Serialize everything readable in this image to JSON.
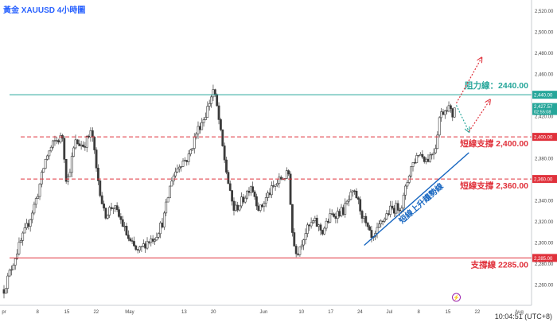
{
  "header": {
    "title": "黃金 XAUUSD 4小時圖"
  },
  "footer": {
    "time": "10:04:51 (UTC+8)"
  },
  "colors": {
    "up": "#26a69a",
    "down": "#ef5350",
    "candle": "#3a3a3a",
    "resistance": "#26a69a",
    "support": "#e0313b",
    "trend": "#1565c0",
    "badge_text": "#ffffff"
  },
  "chart_data": {
    "type": "candlestick",
    "symbol": "XAUUSD",
    "timeframe": "4H",
    "ylim": [
      2240,
      2530
    ],
    "y_ticks": [
      2260,
      2280,
      2300,
      2320,
      2340,
      2360,
      2380,
      2400,
      2420,
      2440,
      2460,
      2480,
      2500,
      2520
    ],
    "y_tick_labels": [
      "2,260.00",
      "2,280.00",
      "2,300.00",
      "2,320.00",
      "2,340.00",
      "2,360.00",
      "2,380.00",
      "2,400.00",
      "2,420.00",
      "2,440.00",
      "2,460.00",
      "2,480.00",
      "2,500.00",
      "2,520.00"
    ],
    "x_ticks": [
      {
        "label": "pr",
        "day": 0
      },
      {
        "label": "8",
        "day": 8
      },
      {
        "label": "15",
        "day": 15
      },
      {
        "label": "22",
        "day": 22
      },
      {
        "label": "May",
        "day": 30
      },
      {
        "label": "13",
        "day": 43
      },
      {
        "label": "20",
        "day": 50
      },
      {
        "label": "Jun",
        "day": 62
      },
      {
        "label": "10",
        "day": 71
      },
      {
        "label": "17",
        "day": 78
      },
      {
        "label": "24",
        "day": 85
      },
      {
        "label": "Jul",
        "day": 92
      },
      {
        "label": "8",
        "day": 99
      },
      {
        "label": "15",
        "day": 106
      },
      {
        "label": "22",
        "day": 113
      },
      {
        "label": "Aug",
        "day": 123
      }
    ],
    "x_range_days": [
      0,
      125
    ],
    "price_path": [
      [
        0,
        2255
      ],
      [
        3,
        2290
      ],
      [
        6,
        2320
      ],
      [
        8,
        2345
      ],
      [
        10,
        2380
      ],
      [
        12,
        2395
      ],
      [
        14,
        2400
      ],
      [
        15,
        2355
      ],
      [
        17,
        2395
      ],
      [
        19,
        2392
      ],
      [
        21,
        2405
      ],
      [
        22,
        2370
      ],
      [
        24,
        2325
      ],
      [
        26,
        2335
      ],
      [
        28,
        2320
      ],
      [
        30,
        2300
      ],
      [
        32,
        2290
      ],
      [
        34,
        2300
      ],
      [
        36,
        2305
      ],
      [
        38,
        2320
      ],
      [
        40,
        2360
      ],
      [
        42,
        2375
      ],
      [
        44,
        2380
      ],
      [
        46,
        2405
      ],
      [
        48,
        2420
      ],
      [
        50,
        2445
      ],
      [
        51,
        2425
      ],
      [
        52,
        2395
      ],
      [
        54,
        2345
      ],
      [
        55,
        2330
      ],
      [
        57,
        2340
      ],
      [
        59,
        2355
      ],
      [
        61,
        2330
      ],
      [
        63,
        2345
      ],
      [
        66,
        2360
      ],
      [
        68,
        2365
      ],
      [
        69,
        2300
      ],
      [
        70,
        2290
      ],
      [
        72,
        2310
      ],
      [
        74,
        2320
      ],
      [
        76,
        2310
      ],
      [
        78,
        2325
      ],
      [
        81,
        2330
      ],
      [
        83,
        2345
      ],
      [
        84,
        2345
      ],
      [
        86,
        2320
      ],
      [
        88,
        2300
      ],
      [
        90,
        2318
      ],
      [
        92,
        2330
      ],
      [
        95,
        2335
      ],
      [
        97,
        2370
      ],
      [
        99,
        2385
      ],
      [
        101,
        2378
      ],
      [
        103,
        2390
      ],
      [
        104,
        2420
      ],
      [
        106,
        2430
      ],
      [
        107,
        2420
      ],
      [
        108,
        2427.57
      ]
    ],
    "last_price": 2427.57,
    "last_price_label": "2,427.57",
    "countdown_label": "02:55:08",
    "annotations": [
      {
        "name": "resistance-2440",
        "kind": "solid",
        "price": 2440,
        "color": "resistance",
        "label": "阻力線：2440.00",
        "badge": "2,440.00"
      },
      {
        "name": "support-2400",
        "kind": "dashed",
        "price": 2400,
        "color": "support",
        "label": "短線支撐 2,400.00",
        "badge": "2,400.00",
        "from_day": 4
      },
      {
        "name": "support-2360",
        "kind": "dashed",
        "price": 2360,
        "color": "support",
        "label": "短線支撐 2,360.00",
        "badge": "2,360.00",
        "from_day": 4
      },
      {
        "name": "support-2285",
        "kind": "solid",
        "price": 2285,
        "color": "support",
        "label": "支撐線 2285.00",
        "badge": "2,285.00"
      }
    ],
    "trendline": {
      "from": [
        86,
        2297
      ],
      "to": [
        111,
        2385
      ],
      "label": "短線上升趨勢線"
    },
    "scenario_arrows": [
      {
        "kind": "up",
        "from": [
          108,
          2432
        ],
        "to": [
          114,
          2475
        ]
      },
      {
        "kind": "down",
        "from": [
          108,
          2430
        ],
        "to": [
          111,
          2405
        ]
      },
      {
        "kind": "up",
        "from": [
          111,
          2405
        ],
        "to": [
          116,
          2435
        ]
      }
    ]
  }
}
